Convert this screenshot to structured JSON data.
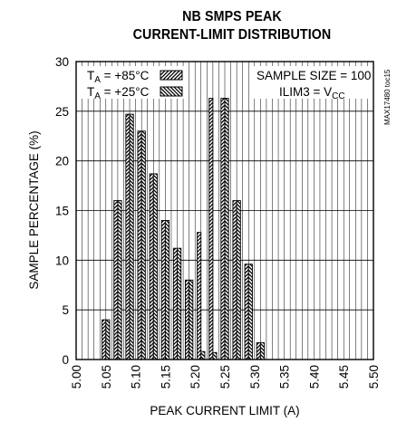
{
  "chart_data": {
    "type": "bar",
    "title": "NB SMPS PEAK",
    "subtitle": "CURRENT-LIMIT DISTRIBUTION",
    "xlabel": "PEAK CURRENT LIMIT (A)",
    "ylabel": "SAMPLE PERCENTAGE (%)",
    "xlim": [
      5.0,
      5.5
    ],
    "ylim": [
      0,
      30
    ],
    "x_ticks": [
      "5.00",
      "5.05",
      "5.10",
      "5.15",
      "5.20",
      "5.25",
      "5.30",
      "5.35",
      "5.40",
      "5.45",
      "5.50"
    ],
    "y_ticks": [
      "0",
      "5",
      "10",
      "15",
      "20",
      "25",
      "30"
    ],
    "grid": true,
    "legend_placement": "top-left",
    "series": [
      {
        "name": "T_A = +85°C",
        "legend_main": "T",
        "legend_sub": "A",
        "legend_rest": " = +85°C",
        "hatch": "diagonal-up",
        "x": [
          5.05,
          5.07,
          5.09,
          5.11,
          5.13,
          5.15,
          5.17,
          5.19,
          5.21,
          5.23,
          5.25,
          5.27,
          5.29,
          5.31
        ],
        "values": [
          4.0,
          16.0,
          24.7,
          23.0,
          18.7,
          14.0,
          11.2,
          8.0,
          12.8,
          26.3,
          26.3,
          16.0,
          9.6,
          1.7
        ]
      },
      {
        "name": "T_A = +25°C",
        "legend_main": "T",
        "legend_sub": "A",
        "legend_rest": " = +25°C",
        "hatch": "diagonal-down",
        "x": [
          5.05,
          5.07,
          5.09,
          5.11,
          5.13,
          5.15,
          5.17,
          5.19,
          5.21,
          5.23,
          5.25,
          5.27,
          5.29,
          5.31
        ],
        "values": [
          4.0,
          16.0,
          24.7,
          23.0,
          18.7,
          14.0,
          11.2,
          8.0,
          0.8,
          0.7,
          26.3,
          16.0,
          9.6,
          1.7
        ]
      }
    ],
    "annotations": {
      "sample_size": "SAMPLE SIZE = 100",
      "ilim_main": "ILIM3 = V",
      "ilim_sub": "CC",
      "figure_code": "MAX17480 toc15"
    },
    "colors": {
      "ink": "#000000",
      "grid": "#000000",
      "background": "#ffffff"
    }
  }
}
